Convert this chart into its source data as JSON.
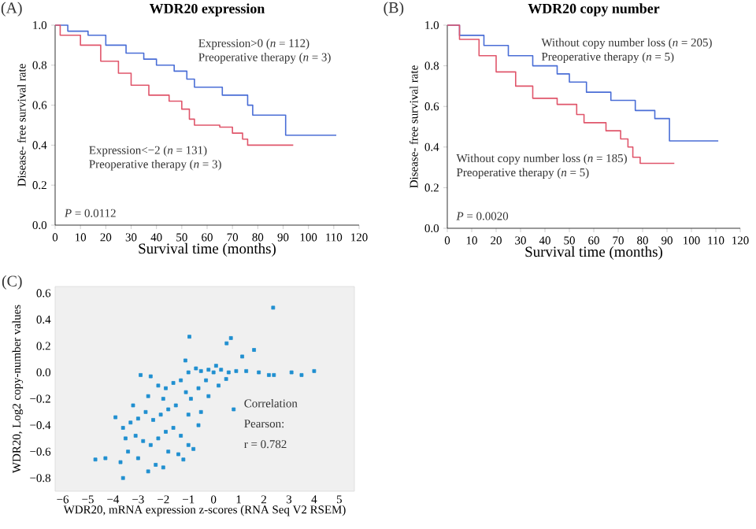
{
  "chart_data": [
    {
      "type": "step",
      "title": "WDR20 expression",
      "xlabel": "Survival time (months)",
      "ylabel": "Disease- free survival rate",
      "xlim": [
        0,
        120
      ],
      "xticks": [
        0,
        10,
        20,
        30,
        40,
        50,
        60,
        70,
        80,
        90,
        100,
        110,
        120
      ],
      "ylim": [
        0,
        1
      ],
      "yticks": [
        {
          "value": 0,
          "label": "0.0"
        },
        0.2,
        0.4,
        0.6,
        0.8,
        {
          "value": 1,
          "label": "1.0"
        }
      ],
      "series": [
        {
          "name": "Expression>0 (*n* = 112)",
          "color": "#4a6ed6",
          "x": [
            0,
            5,
            13,
            20,
            28,
            35,
            40,
            47,
            52,
            55,
            66,
            76,
            78,
            91,
            111
          ],
          "values": [
            1.0,
            0.97,
            0.95,
            0.9,
            0.86,
            0.83,
            0.8,
            0.77,
            0.73,
            0.69,
            0.65,
            0.6,
            0.55,
            0.45,
            0.45
          ]
        },
        {
          "name": "Expression<−2 (*n* = 131)",
          "color": "#e0566b",
          "x": [
            0,
            2,
            10,
            18,
            25,
            30,
            37,
            45,
            50,
            53,
            55,
            65,
            70,
            74,
            76,
            94
          ],
          "values": [
            1.0,
            0.95,
            0.9,
            0.82,
            0.76,
            0.7,
            0.65,
            0.62,
            0.58,
            0.53,
            0.5,
            0.49,
            0.46,
            0.43,
            0.4,
            0.4
          ]
        }
      ],
      "annotations": [
        "(A)",
        "*P* = 0.0112",
        "Preoperative therapy (*n* = 3)",
        "Preoperative therapy (*n* = 3)"
      ]
    },
    {
      "type": "step",
      "title": "WDR20 copy number",
      "xlabel": "Survival time (months)",
      "ylabel": "Disease- free survival rate",
      "xlim": [
        0,
        120
      ],
      "xticks": [
        0,
        10,
        20,
        30,
        40,
        50,
        60,
        70,
        80,
        90,
        100,
        110,
        120
      ],
      "ylim": [
        0,
        1
      ],
      "yticks": [
        {
          "value": 0,
          "label": "0.0"
        },
        0.2,
        0.4,
        0.6,
        0.8,
        {
          "value": 1,
          "label": "1.0"
        }
      ],
      "series": [
        {
          "name": "Without copy number loss (*n* = 205)",
          "color": "#4a6ed6",
          "x": [
            0,
            5,
            15,
            25,
            35,
            45,
            50,
            57,
            67,
            77,
            85,
            91,
            111
          ],
          "values": [
            1.0,
            0.95,
            0.9,
            0.85,
            0.8,
            0.76,
            0.72,
            0.67,
            0.63,
            0.58,
            0.54,
            0.43,
            0.43
          ]
        },
        {
          "name": "Without copy number loss (*n* = 185)",
          "color": "#e0566b",
          "x": [
            0,
            5,
            13,
            20,
            28,
            35,
            45,
            53,
            56,
            65,
            71,
            74,
            76,
            79,
            93
          ],
          "values": [
            1.0,
            0.93,
            0.85,
            0.77,
            0.7,
            0.64,
            0.61,
            0.56,
            0.52,
            0.48,
            0.44,
            0.4,
            0.35,
            0.32,
            0.32
          ]
        }
      ],
      "annotations": [
        "(B)",
        "*P* = 0.0020",
        "Preoperative therapy (*n* = 5)",
        "Preoperative therapy (*n* = 5)"
      ]
    },
    {
      "type": "scatter",
      "xlabel": "WDR20, mRNA expression z-scores (RNA Seq V2 RSEM)",
      "ylabel": "WDR20, Log2 copy-number values",
      "xlim": [
        -6.3,
        5.6
      ],
      "xticks": [
        {
          "value": -6,
          "label": "−6"
        },
        {
          "value": -5,
          "label": "−5"
        },
        {
          "value": -4,
          "label": "−4"
        },
        {
          "value": -3,
          "label": "−3"
        },
        {
          "value": -2,
          "label": "−2"
        },
        {
          "value": -1,
          "label": "−1"
        },
        0,
        1,
        2,
        3,
        4,
        5
      ],
      "ylim": [
        -0.9,
        0.65
      ],
      "yticks": [
        {
          "value": -0.8,
          "label": "−0.8"
        },
        {
          "value": -0.6,
          "label": "−0.6"
        },
        {
          "value": -0.4,
          "label": "−0.4"
        },
        {
          "value": -0.2,
          "label": "−0.2"
        },
        {
          "value": 0,
          "label": "0.0"
        },
        0.2,
        0.4,
        0.6
      ],
      "marker": "square",
      "series": [
        {
          "color": "#1f8fd0",
          "x": [
            2.37,
            -0.96,
            0.69,
            0.52,
            1.61,
            1.14,
            -1.12,
            -1.0,
            -0.5,
            -0.2,
            0.0,
            0.3,
            0.6,
            0.9,
            1.3,
            1.8,
            2.2,
            2.4,
            3.1,
            3.5,
            4.0,
            0.1,
            -0.7,
            -2.9,
            -2.5,
            -2.2,
            -1.9,
            -1.6,
            -1.3,
            -1.1,
            -0.9,
            -0.6,
            -0.3,
            0.2,
            0.8,
            -0.5,
            -1.0,
            -1.5,
            -1.8,
            -2.1,
            -2.4,
            -2.7,
            -3.0,
            -3.3,
            -3.6,
            -3.9,
            -3.5,
            -3.1,
            -2.8,
            -2.5,
            -2.2,
            -1.9,
            -1.6,
            -1.3,
            -1.0,
            -0.8,
            -1.4,
            -1.8,
            -2.3,
            -2.6,
            -3.0,
            -3.4,
            -3.7,
            -3.6,
            -4.3,
            -4.7,
            -2.0,
            -1.2,
            -0.6,
            -0.2,
            0.5,
            -2.6,
            -3.2,
            -2.0
          ],
          "values": [
            0.49,
            0.27,
            0.26,
            0.22,
            0.17,
            0.12,
            0.09,
            0.0,
            0.01,
            0.02,
            0.0,
            0.02,
            0.0,
            0.01,
            0.01,
            0.0,
            -0.02,
            -0.02,
            0.0,
            -0.02,
            0.01,
            0.05,
            0.03,
            -0.02,
            -0.03,
            -0.1,
            -0.12,
            -0.08,
            -0.06,
            -0.15,
            -0.2,
            -0.12,
            -0.06,
            -0.1,
            -0.28,
            -0.3,
            -0.32,
            -0.25,
            -0.28,
            -0.32,
            -0.36,
            -0.3,
            -0.35,
            -0.38,
            -0.42,
            -0.34,
            -0.5,
            -0.48,
            -0.52,
            -0.55,
            -0.5,
            -0.45,
            -0.42,
            -0.48,
            -0.55,
            -0.58,
            -0.62,
            -0.6,
            -0.7,
            -0.75,
            -0.65,
            -0.6,
            -0.68,
            -0.8,
            -0.65,
            -0.66,
            -0.72,
            -0.66,
            -0.4,
            -0.18,
            -0.05,
            -0.18,
            -0.25,
            -0.2
          ]
        }
      ],
      "annotations": [
        "(C)",
        "Correlation",
        "Pearson:",
        "r = 0.782"
      ]
    }
  ]
}
